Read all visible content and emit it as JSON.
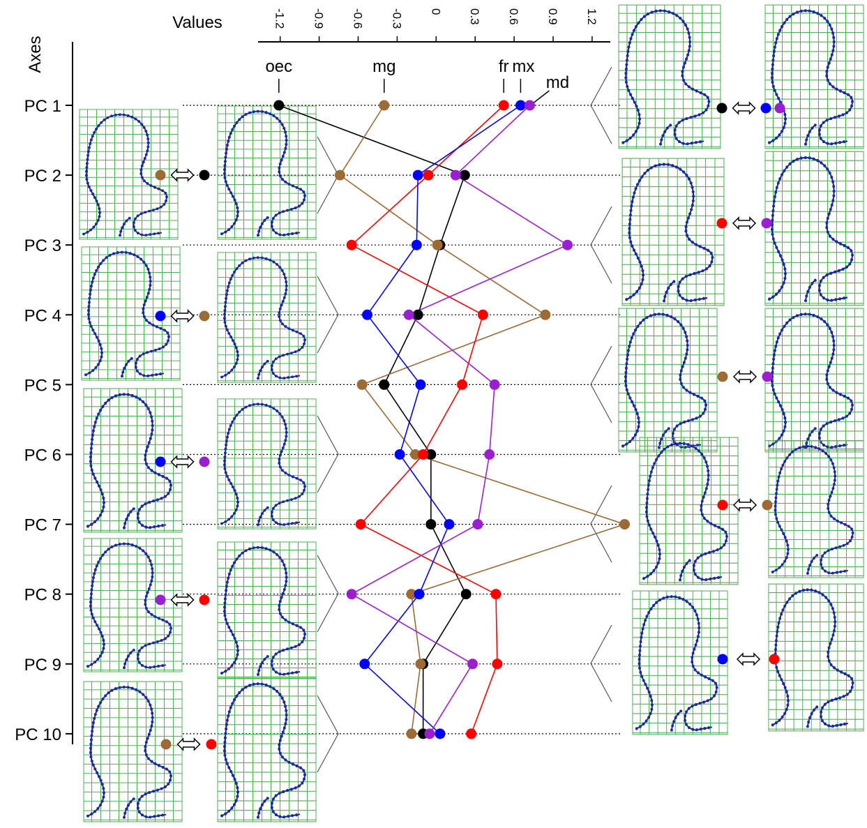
{
  "chart_data": {
    "type": "line",
    "x_label": "Values",
    "y_label": "Axes",
    "categories": [
      "PC 1",
      "PC 2",
      "PC 3",
      "PC 4",
      "PC 5",
      "PC 6",
      "PC 7",
      "PC 8",
      "PC 9",
      "PC 10"
    ],
    "series": [
      {
        "name": "oec",
        "color": "#000000",
        "values": [
          -1.21,
          0.22,
          0.03,
          -0.14,
          -0.4,
          -0.04,
          -0.04,
          0.23,
          -0.1,
          -0.1
        ]
      },
      {
        "name": "mg",
        "color": "#9b6a35",
        "values": [
          -0.4,
          -0.74,
          0.01,
          0.84,
          -0.57,
          -0.16,
          1.45,
          -0.19,
          -0.12,
          -0.19
        ]
      },
      {
        "name": "fr",
        "color": "#ff0000",
        "values": [
          0.52,
          -0.06,
          -0.65,
          0.36,
          0.2,
          -0.1,
          -0.58,
          0.46,
          0.47,
          0.27
        ]
      },
      {
        "name": "mx",
        "color": "#0000ff",
        "values": [
          0.65,
          -0.14,
          -0.15,
          -0.53,
          -0.12,
          -0.28,
          0.1,
          -0.13,
          -0.55,
          0.03
        ]
      },
      {
        "name": "md",
        "color": "#9a1fd0",
        "values": [
          0.72,
          0.15,
          1.01,
          -0.21,
          0.45,
          0.41,
          0.32,
          -0.65,
          0.28,
          -0.05
        ]
      }
    ],
    "xlim": [
      -1.37,
      1.34
    ],
    "xticks": [
      -1.2,
      -0.9,
      -0.6,
      -0.3,
      0,
      0.3,
      0.6,
      0.9,
      1.2
    ],
    "grid": true
  }
}
